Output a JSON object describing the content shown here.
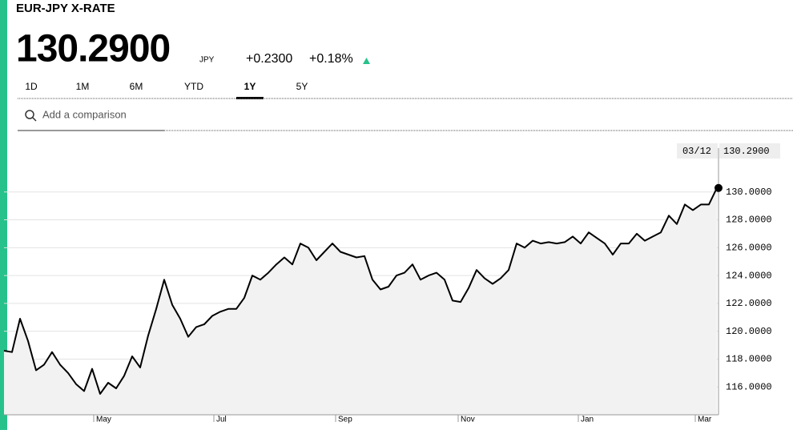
{
  "header": {
    "title": "EUR-JPY X-RATE",
    "price": "130.2900",
    "currency": "JPY",
    "change": "+0.2300",
    "change_pct": "+0.18%"
  },
  "tabs": {
    "items": [
      "1D",
      "1M",
      "6M",
      "YTD",
      "1Y",
      "5Y"
    ],
    "active": 4
  },
  "search": {
    "placeholder": "Add a comparison"
  },
  "chart_data": {
    "type": "line",
    "values": [
      118.6,
      118.5,
      120.9,
      119.3,
      117.2,
      117.6,
      118.5,
      117.6,
      117.0,
      116.2,
      115.7,
      117.3,
      115.5,
      116.3,
      115.9,
      116.8,
      118.2,
      117.4,
      119.7,
      121.6,
      123.7,
      121.9,
      120.9,
      119.6,
      120.3,
      120.5,
      121.1,
      121.4,
      121.6,
      121.6,
      122.4,
      124.0,
      123.7,
      124.2,
      124.8,
      125.3,
      124.8,
      126.3,
      126.0,
      125.1,
      125.7,
      126.3,
      125.7,
      125.5,
      125.3,
      125.4,
      123.7,
      123.0,
      123.2,
      124.0,
      124.2,
      124.8,
      123.7,
      124.0,
      124.2,
      123.7,
      122.2,
      122.1,
      123.1,
      124.4,
      123.8,
      123.4,
      123.8,
      124.4,
      126.3,
      126.0,
      126.5,
      126.3,
      126.4,
      126.3,
      126.4,
      126.8,
      126.3,
      127.1,
      126.7,
      126.3,
      125.5,
      126.3,
      126.3,
      127.0,
      126.5,
      126.8,
      127.1,
      128.3,
      127.7,
      129.1,
      128.7,
      129.1,
      129.1,
      130.29
    ],
    "color": "#000000",
    "area_color": "#f2f2f2",
    "xlim": [
      0,
      89
    ],
    "xticks": [
      {
        "value": 11.2,
        "label": "May"
      },
      {
        "value": 26.2,
        "label": "Jul"
      },
      {
        "value": 41.4,
        "label": "Sep"
      },
      {
        "value": 56.7,
        "label": "Nov"
      },
      {
        "value": 71.7,
        "label": "Jan"
      },
      {
        "value": 86.3,
        "label": "Mar"
      }
    ],
    "ylim": [
      114,
      134.3
    ],
    "yticks": [
      {
        "value": 116,
        "label": "116.0000"
      },
      {
        "value": 118,
        "label": "118.0000"
      },
      {
        "value": 120,
        "label": "120.0000"
      },
      {
        "value": 122,
        "label": "122.0000"
      },
      {
        "value": 124,
        "label": "124.0000"
      },
      {
        "value": 126,
        "label": "126.0000"
      },
      {
        "value": 128,
        "label": "128.0000"
      },
      {
        "value": 130,
        "label": "130.0000"
      }
    ],
    "grid": true,
    "tooltip": {
      "date": "03/12",
      "value": "130.2900"
    }
  }
}
